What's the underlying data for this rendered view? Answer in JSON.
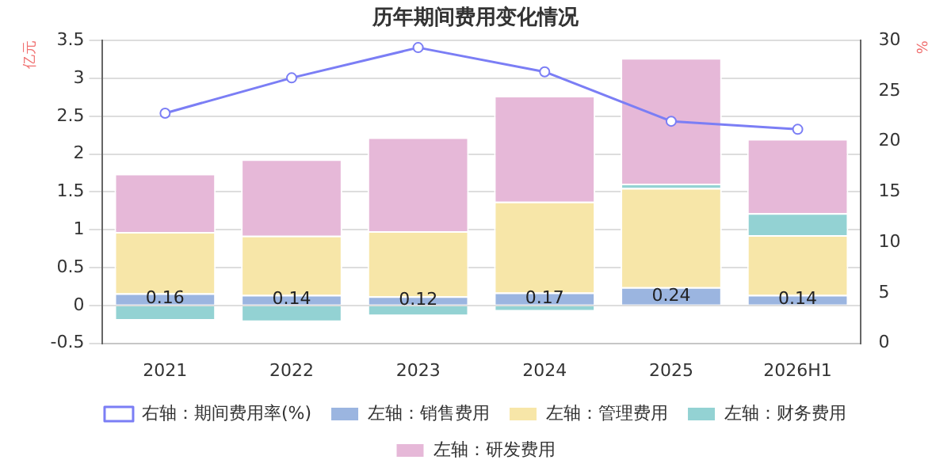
{
  "chart_data": {
    "type": "bar",
    "title": "历年期间费用变化情况",
    "ylabel": "亿元",
    "y2label": "%",
    "categories": [
      "2021",
      "2022",
      "2023",
      "2024",
      "2025",
      "2026H1"
    ],
    "stacked": true,
    "series": [
      {
        "name": "左轴：销售费用",
        "color": "#9bb5e0",
        "values": [
          0.16,
          0.14,
          0.12,
          0.17,
          0.24,
          0.14
        ],
        "value_labels": [
          "0.16",
          "0.14",
          "0.12",
          "0.17",
          "0.24",
          "0.14"
        ]
      },
      {
        "name": "左轴：管理费用",
        "color": "#f7e6a8",
        "values": [
          0.81,
          0.78,
          0.86,
          1.2,
          1.31,
          0.79
        ]
      },
      {
        "name": "左轴：财务费用",
        "color": "#93d2d3",
        "values": [
          -0.2,
          -0.22,
          -0.14,
          -0.08,
          0.06,
          0.29
        ]
      },
      {
        "name": "左轴：研发费用",
        "color": "#e6b8d8",
        "values": [
          0.77,
          1.01,
          1.24,
          1.4,
          1.66,
          0.98
        ]
      },
      {
        "name": "右轴：期间费用率(%)",
        "type": "line",
        "axis": "y2",
        "color": "#7b7ef5",
        "marker": "circle",
        "values": [
          22.8,
          26.3,
          29.3,
          26.9,
          22,
          21.2
        ]
      }
    ],
    "ylim": [
      -0.5,
      3.5
    ],
    "yticks": [
      -0.5,
      0,
      0.5,
      1,
      1.5,
      2,
      2.5,
      3,
      3.5
    ],
    "y2lim": [
      0,
      30
    ],
    "y2ticks": [
      0,
      5,
      10,
      15,
      20,
      25,
      30
    ],
    "grid": "y",
    "legend": "bottom"
  }
}
